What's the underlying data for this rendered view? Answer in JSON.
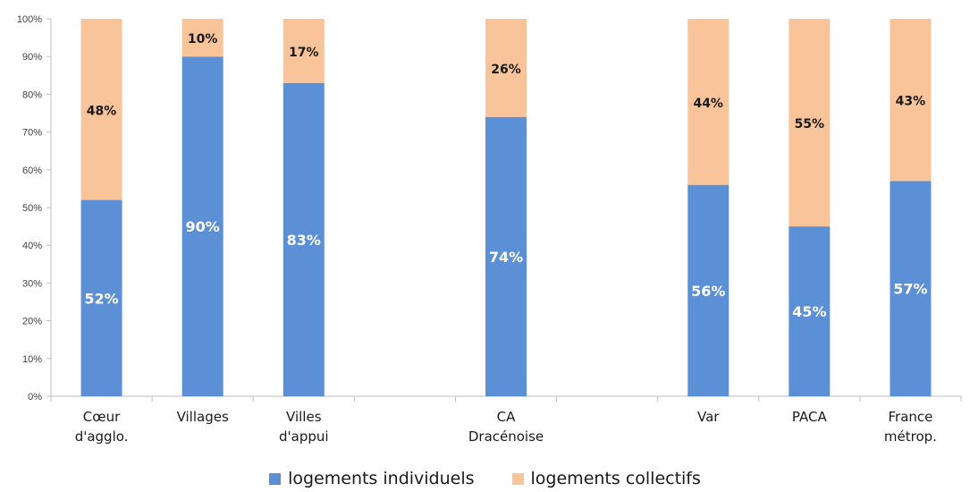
{
  "chart_data": {
    "type": "bar",
    "stacked": true,
    "percent_stacked": true,
    "categories": [
      "Cœur\nd'agglo.",
      "Villages",
      "Villes\nd'appui",
      "",
      "CA\nDracénoise",
      "",
      "Var",
      "PACA",
      "France\nmétrop."
    ],
    "series": [
      {
        "name": "logements individuels",
        "color": "#5B8FD6",
        "values": [
          52,
          90,
          83,
          null,
          74,
          null,
          56,
          45,
          57
        ],
        "labels": [
          "52%",
          "90%",
          "83%",
          "",
          "74%",
          "",
          "56%",
          "45%",
          "57%"
        ]
      },
      {
        "name": "logements collectifs",
        "color": "#F9C49A",
        "values": [
          48,
          10,
          17,
          null,
          26,
          null,
          44,
          55,
          43
        ],
        "labels": [
          "48%",
          "10%",
          "17%",
          "",
          "26%",
          "",
          "44%",
          "55%",
          "43%"
        ]
      }
    ],
    "y_ticks": [
      "0%",
      "10%",
      "20%",
      "30%",
      "40%",
      "50%",
      "60%",
      "70%",
      "80%",
      "90%",
      "100%"
    ],
    "ylim": [
      0,
      100
    ],
    "grid": false,
    "legend_position": "bottom-center",
    "title": "",
    "xlabel": "",
    "ylabel": ""
  }
}
